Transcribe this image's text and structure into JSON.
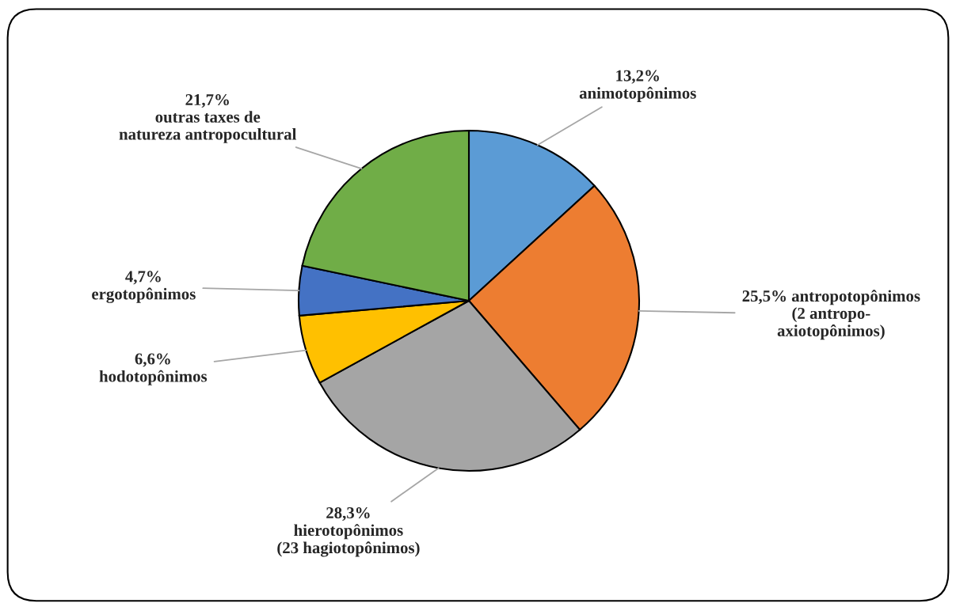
{
  "chart_data": {
    "type": "pie",
    "categories": [
      "animotopônimos",
      "antropotopônimos\n(2 antropo-\naxiotopônimos)",
      "hierotopônimos\n(23 hagiotopônimos)",
      "hodotopônimos",
      "ergotopônimos",
      "outras taxes de\nnatureza antropocultural"
    ],
    "values": [
      13.2,
      25.5,
      28.3,
      6.6,
      4.7,
      21.7
    ],
    "value_labels": [
      "13,2%",
      "25,5%",
      "28,3%",
      "6,6%",
      "4,7%",
      "21,7%"
    ],
    "colors": [
      "#5b9bd5",
      "#ed7d31",
      "#a5a5a5",
      "#ffc000",
      "#4472c4",
      "#70ad47"
    ],
    "legend": false
  }
}
